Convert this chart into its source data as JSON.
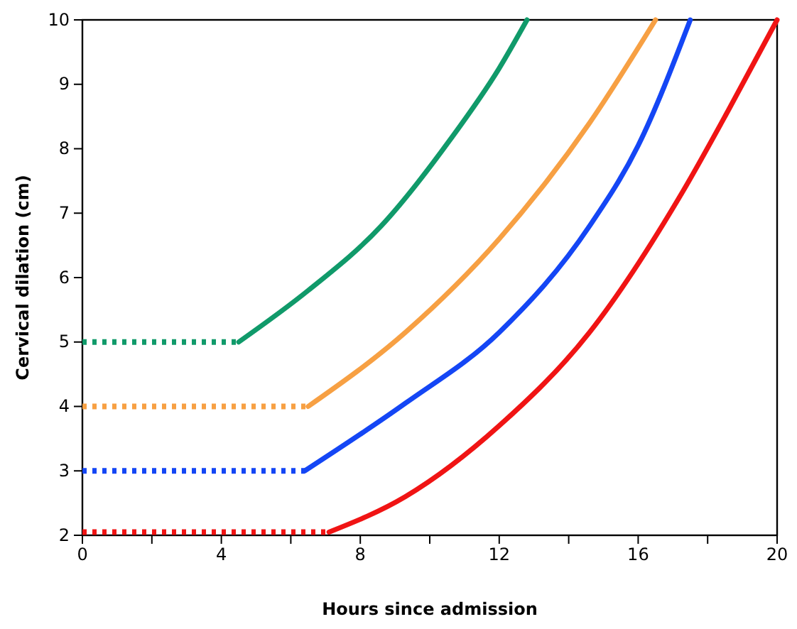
{
  "chart_data": {
    "type": "line",
    "xlabel": "Hours since admission",
    "ylabel": "Cervical dilation (cm)",
    "xlim": [
      0,
      20
    ],
    "ylim": [
      2,
      10
    ],
    "xticks": [
      0,
      {
        "value": 2,
        "label": null
      },
      4,
      {
        "value": 6,
        "label": null
      },
      8,
      {
        "value": 10,
        "label": null
      },
      12,
      {
        "value": 14,
        "label": null
      },
      16,
      {
        "value": 18,
        "label": null
      },
      20
    ],
    "yticks": [
      2,
      3,
      4,
      5,
      6,
      7,
      8,
      9,
      10
    ],
    "grid": false,
    "series": [
      {
        "color": "#109a6a",
        "line_style": "dotted",
        "x": [
          0,
          4.5
        ],
        "values": [
          5,
          5
        ]
      },
      {
        "color": "#109a6a",
        "line_style": "solid",
        "x": [
          4.5,
          6.5,
          8.6,
          10.6,
          12,
          12.8
        ],
        "values": [
          5,
          5.8,
          6.8,
          8.15,
          9.25,
          10
        ]
      },
      {
        "color": "#f7a043",
        "line_style": "dotted",
        "x": [
          0,
          6.5
        ],
        "values": [
          4,
          4
        ]
      },
      {
        "color": "#f7a043",
        "line_style": "solid",
        "x": [
          6.5,
          9.3,
          12,
          14.6,
          16.5
        ],
        "values": [
          4,
          5.15,
          6.6,
          8.4,
          10
        ]
      },
      {
        "color": "#1446f5",
        "line_style": "dotted",
        "x": [
          0,
          6.4
        ],
        "values": [
          3,
          3
        ]
      },
      {
        "color": "#1446f5",
        "line_style": "solid",
        "x": [
          6.4,
          9.3,
          12,
          14.6,
          16,
          17.5
        ],
        "values": [
          3,
          4.05,
          5.15,
          6.8,
          8.05,
          10
        ]
      },
      {
        "color": "#f01414",
        "line_style": "dotted",
        "x": [
          0,
          7.1
        ],
        "values": [
          2.05,
          2.05
        ]
      },
      {
        "color": "#f01414",
        "line_style": "solid",
        "x": [
          7.1,
          9.3,
          12,
          14.6,
          17.3,
          18.6,
          20
        ],
        "values": [
          2.05,
          2.6,
          3.7,
          5.15,
          7.35,
          8.6,
          10
        ]
      }
    ]
  }
}
